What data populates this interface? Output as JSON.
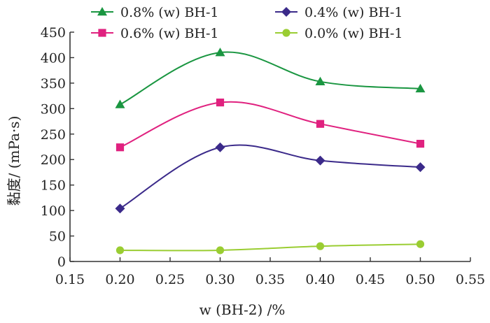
{
  "chart_data": {
    "type": "line",
    "xlabel": "w (BH-2) /%",
    "ylabel": "黏度/ (mPa·s)",
    "xlim": [
      0.15,
      0.55
    ],
    "ylim": [
      0,
      450
    ],
    "x_ticks": [
      "0.15",
      "0.20",
      "0.25",
      "0.30",
      "0.35",
      "0.40",
      "0.45",
      "0.50",
      "0.55"
    ],
    "y_ticks": [
      "0",
      "50",
      "100",
      "150",
      "200",
      "250",
      "300",
      "350",
      "400",
      "450"
    ],
    "legend_placement": "top",
    "x": [
      0.2,
      0.3,
      0.4,
      0.5
    ],
    "series": [
      {
        "name": "0.8% (w) BH-1",
        "marker": "triangle",
        "color": "#1a9641",
        "values": [
          308,
          410,
          353,
          339
        ]
      },
      {
        "name": "0.4% (w) BH-1",
        "marker": "diamond",
        "color": "#3b2a8a",
        "values": [
          104,
          224,
          198,
          185
        ]
      },
      {
        "name": "0.6% (w) BH-1",
        "marker": "square",
        "color": "#e0217f",
        "values": [
          224,
          312,
          270,
          231
        ]
      },
      {
        "name": "0.0% (w) BH-1",
        "marker": "circle",
        "color": "#9acd32",
        "values": [
          22,
          22,
          30,
          34
        ]
      }
    ]
  }
}
